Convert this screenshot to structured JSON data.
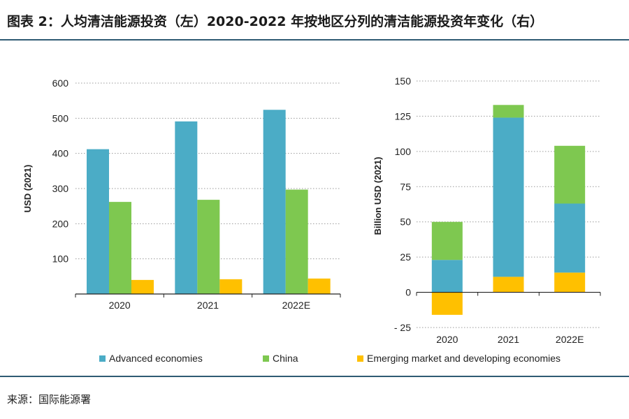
{
  "page": {
    "title": "图表 2：人均清洁能源投资（左）2020-2022 年按地区分列的清洁能源投资年变化（右）",
    "source": "来源：国际能源署"
  },
  "colors": {
    "advanced": "#4bacc6",
    "china": "#7ec850",
    "emerging": "#ffc000",
    "grid": "#9a9a9a",
    "axis": "#222222"
  },
  "legend": [
    {
      "key": "advanced",
      "label": "Advanced economies"
    },
    {
      "key": "china",
      "label": "China"
    },
    {
      "key": "emerging",
      "label": "Emerging market and developing economies"
    }
  ],
  "chart_data": [
    {
      "type": "bar",
      "title": "",
      "xlabel": "",
      "ylabel": "USD (2021)",
      "ylim": [
        0,
        600
      ],
      "yticks": [
        100,
        200,
        300,
        400,
        500,
        600
      ],
      "ytick_labels": [
        "100",
        "200",
        "300",
        "400",
        "500",
        "600"
      ],
      "categories": [
        "2020",
        "2021",
        "2022E"
      ],
      "series": [
        {
          "name": "Advanced economies",
          "key": "advanced",
          "values": [
            412,
            491,
            524
          ]
        },
        {
          "name": "China",
          "key": "china",
          "values": [
            262,
            268,
            297
          ]
        },
        {
          "name": "Emerging market and developing economies",
          "key": "emerging",
          "values": [
            40,
            42,
            44
          ]
        }
      ]
    },
    {
      "type": "bar",
      "stacked": true,
      "title": "",
      "xlabel": "",
      "ylabel": "Billion USD (2021)",
      "ylim": [
        -25,
        150
      ],
      "yticks": [
        -25,
        0,
        25,
        50,
        75,
        100,
        125,
        150
      ],
      "ytick_labels": [
        "- 25",
        "0",
        "25",
        "50",
        "75",
        "100",
        "125",
        "150"
      ],
      "categories": [
        "2020",
        "2021",
        "2022E"
      ],
      "series": [
        {
          "name": "Emerging market and developing economies",
          "key": "emerging",
          "values": [
            -16,
            11,
            14
          ]
        },
        {
          "name": "Advanced economies",
          "key": "advanced",
          "values": [
            23,
            113,
            49
          ]
        },
        {
          "name": "China",
          "key": "china",
          "values": [
            27,
            9,
            41
          ]
        }
      ]
    }
  ]
}
